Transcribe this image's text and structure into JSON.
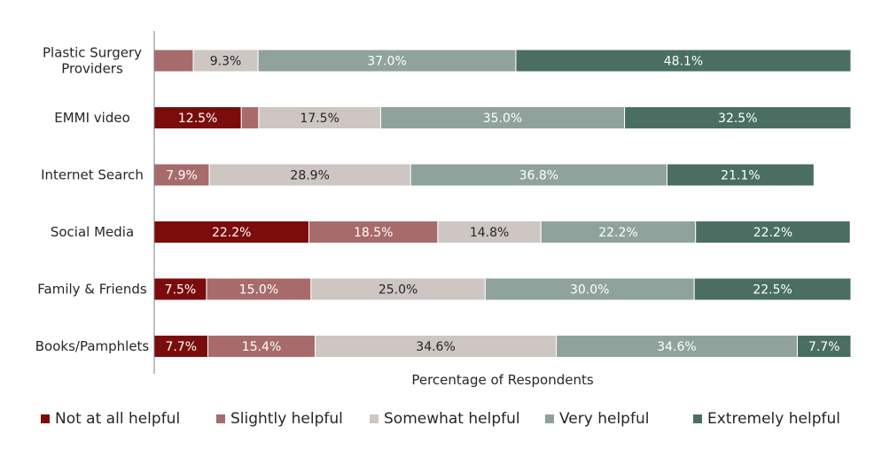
{
  "chart_data": {
    "type": "bar",
    "orientation": "horizontal",
    "stacked": true,
    "categories": [
      "Plastic Surgery Providers",
      "EMMI video",
      "Internet Search",
      "Social Media",
      "Family & Friends",
      "Books/Pamphlets"
    ],
    "category_lines": [
      [
        "Plastic Surgery",
        "Providers"
      ],
      [
        "EMMI video"
      ],
      [
        "Internet Search"
      ],
      [
        "Social Media"
      ],
      [
        "Family & Friends"
      ],
      [
        "Books/Pamphlets"
      ]
    ],
    "series": [
      {
        "name": "Not at all helpful",
        "color": "#7b0c0c",
        "label_color": "#ffffff",
        "values": [
          0,
          12.5,
          0,
          22.2,
          7.5,
          7.7
        ],
        "labels": [
          "",
          "12.5%",
          "",
          "22.2%",
          "7.5%",
          "7.7%"
        ]
      },
      {
        "name": "Slightly helpful",
        "color": "#a86b6b",
        "label_color": "#ffffff",
        "values": [
          5.6,
          2.5,
          7.9,
          18.5,
          15.0,
          15.4
        ],
        "labels": [
          "",
          "",
          "7.9%",
          "18.5%",
          "15.0%",
          "15.4%"
        ]
      },
      {
        "name": "Somewhat helpful",
        "color": "#cdc6c2",
        "label_color": "#262626",
        "values": [
          9.3,
          17.5,
          28.9,
          14.8,
          25.0,
          34.6
        ],
        "labels": [
          "9.3%",
          "17.5%",
          "28.9%",
          "14.8%",
          "25.0%",
          "34.6%"
        ]
      },
      {
        "name": "Very helpful",
        "color": "#8fa39c",
        "label_color": "#ffffff",
        "values": [
          37.0,
          35.0,
          36.8,
          22.2,
          30.0,
          34.6
        ],
        "labels": [
          "37.0%",
          "35.0%",
          "36.8%",
          "22.2%",
          "30.0%",
          "34.6%"
        ]
      },
      {
        "name": "Extremely helpful",
        "color": "#4a6e62",
        "label_color": "#ffffff",
        "values": [
          48.1,
          32.5,
          21.1,
          22.2,
          22.5,
          7.7
        ],
        "labels": [
          "48.1%",
          "32.5%",
          "21.1%",
          "22.2%",
          "22.5%",
          "7.7%"
        ]
      }
    ],
    "xlabel": "Percentage of Respondents",
    "ylabel": "",
    "xlim": [
      0,
      100
    ],
    "grid": false,
    "legend": "bottom"
  }
}
